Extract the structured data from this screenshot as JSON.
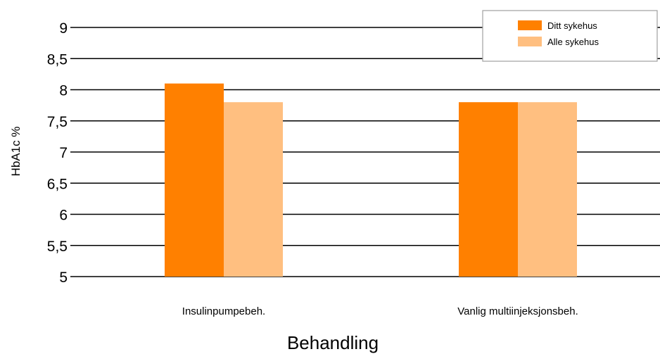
{
  "chart_data": {
    "type": "bar",
    "title": "",
    "xlabel": "Behandling",
    "ylabel": "HbA1c %",
    "ylim": [
      5,
      9
    ],
    "yticks": [
      "5",
      "5,5",
      "6",
      "6,5",
      "7",
      "7,5",
      "8",
      "8,5",
      "9"
    ],
    "categories": [
      "Insulinpumpebeh.",
      "Vanlig multiinjeksjonsbeh."
    ],
    "series": [
      {
        "name": "Ditt sykehus",
        "values": [
          8.1,
          7.8
        ],
        "color": "#ff8000"
      },
      {
        "name": "Alle sykehus",
        "values": [
          7.8,
          7.8
        ],
        "color": "#ffbf80"
      }
    ],
    "grid": true,
    "legend": "top-right"
  }
}
